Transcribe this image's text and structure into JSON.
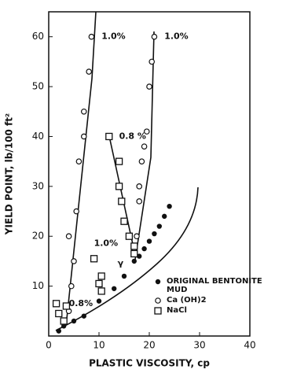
{
  "chart_data": {
    "type": "scatter",
    "x_label": "PLASTIC VISCOSITY,  cp",
    "y_label": "YIELD POINT, lb/100 ft²",
    "xlim": [
      0,
      40
    ],
    "xticks": [
      0,
      10,
      20,
      30,
      40
    ],
    "ylim": [
      0,
      65
    ],
    "yticks": [
      10,
      20,
      30,
      40,
      50,
      60
    ],
    "grid": false,
    "series": [
      {
        "name": "ORIGINAL BENTONITE MUD",
        "marker": "filled-circle",
        "color": "#111",
        "x": [
          2,
          3,
          5,
          7,
          10,
          13,
          15,
          17,
          18,
          19,
          20,
          21,
          22,
          23,
          24
        ],
        "values": [
          1,
          2,
          3,
          4,
          7,
          9.5,
          12,
          15,
          16,
          17.5,
          19,
          20.5,
          22,
          24,
          26
        ]
      },
      {
        "name": "Ca (OH)2",
        "marker": "open-circle",
        "color": "#111",
        "x": [
          4,
          4.5,
          5,
          5.5,
          6,
          7,
          7,
          8,
          8.5,
          4,
          17,
          17.5,
          18,
          18,
          18.5,
          19,
          19.5,
          20,
          20.5,
          21
        ],
        "values": [
          5,
          10,
          15,
          25,
          35,
          40,
          45,
          53,
          60,
          20,
          17,
          20,
          27,
          30,
          35,
          38,
          41,
          50,
          55,
          60
        ]
      },
      {
        "name": "NaCl",
        "marker": "open-square",
        "color": "#111",
        "x": [
          1.5,
          2,
          3,
          3.5,
          9,
          10,
          10.5,
          10.5,
          12,
          14,
          14,
          14.5,
          15,
          16,
          17,
          17
        ],
        "values": [
          6.5,
          4.5,
          3,
          6,
          15.5,
          10.5,
          12,
          9,
          40,
          35,
          30,
          27,
          23,
          20,
          18,
          16.5
        ]
      }
    ],
    "annotations": [
      {
        "text": "1.0%",
        "x": 10.5,
        "y": 60
      },
      {
        "text": "1.0%",
        "x": 23,
        "y": 60
      },
      {
        "text": "0.8 %",
        "x": 14,
        "y": 40
      },
      {
        "text": "1.0%",
        "x": 9,
        "y": 18.5
      },
      {
        "text": "0.8%",
        "x": 4,
        "y": 6.5
      },
      {
        "text": "γ",
        "x": 13.7,
        "y": 14.5
      }
    ]
  }
}
